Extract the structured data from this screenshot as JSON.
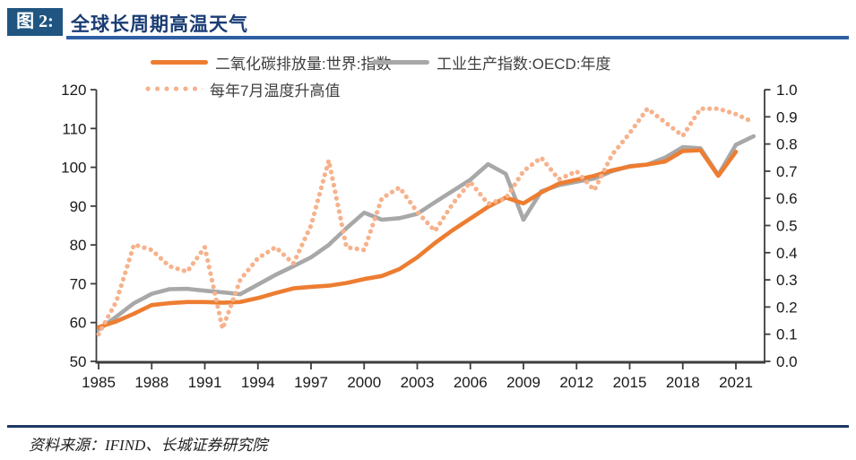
{
  "header": {
    "figure_label": "图 2:",
    "title": "全球长周期高温天气"
  },
  "legend": [
    {
      "label": "二氧化碳排放量:世界:指数",
      "style": "solid",
      "color": "#ED7D31"
    },
    {
      "label": "工业生产指数:OECD:年度",
      "style": "solid",
      "color": "#A8A8A8"
    },
    {
      "label": "每年7月温度升高值",
      "style": "dotted",
      "color": "#F6B28C"
    }
  ],
  "footer": {
    "source": "资料来源：IFIND、长城证券研究院"
  },
  "chart_data": {
    "type": "line",
    "title": "全球长周期高温天气",
    "x": [
      1985,
      1986,
      1987,
      1988,
      1989,
      1990,
      1991,
      1992,
      1993,
      1994,
      1995,
      1996,
      1997,
      1998,
      1999,
      2000,
      2001,
      2002,
      2003,
      2004,
      2005,
      2006,
      2007,
      2008,
      2009,
      2010,
      2011,
      2012,
      2013,
      2014,
      2015,
      2016,
      2017,
      2018,
      2019,
      2020,
      2021,
      2022
    ],
    "x_ticks": [
      1985,
      1988,
      1991,
      1994,
      1997,
      2000,
      2003,
      2006,
      2009,
      2012,
      2015,
      2018,
      2021
    ],
    "left_axis": {
      "min": 50,
      "max": 120,
      "ticks": [
        50,
        60,
        70,
        80,
        90,
        100,
        110,
        120
      ]
    },
    "right_axis": {
      "min": 0.0,
      "max": 1.0,
      "ticks": [
        "0.0",
        "0.1",
        "0.2",
        "0.3",
        "0.4",
        "0.5",
        "0.6",
        "0.7",
        "0.8",
        "0.9",
        "1.0"
      ]
    },
    "grid": false,
    "legend_position": "top",
    "series": [
      {
        "name": "工业生产指数:OECD:年度",
        "axis": "left",
        "style": "solid",
        "color": "#A8A8A8",
        "values": [
          58.2,
          61.5,
          65.0,
          67.4,
          68.6,
          68.7,
          68.2,
          67.8,
          67.3,
          69.8,
          72.3,
          74.5,
          76.8,
          80.0,
          84.3,
          88.3,
          86.5,
          86.9,
          88.0,
          91.0,
          93.9,
          96.8,
          100.8,
          98.3,
          86.5,
          93.8,
          95.4,
          96.3,
          97.1,
          99.0,
          100.3,
          100.7,
          102.5,
          105.2,
          104.9,
          98.0,
          105.8,
          108.0
        ]
      },
      {
        "name": "二氧化碳排放量:世界:指数",
        "axis": "left",
        "style": "solid",
        "color": "#ED7D31",
        "values": [
          58.8,
          60.3,
          62.3,
          64.5,
          65.0,
          65.3,
          65.3,
          65.1,
          65.3,
          66.3,
          67.6,
          68.8,
          69.2,
          69.5,
          70.2,
          71.2,
          72.0,
          73.8,
          76.8,
          80.5,
          83.8,
          86.8,
          89.8,
          92.2,
          90.7,
          93.5,
          95.8,
          96.8,
          97.8,
          99.2,
          100.2,
          100.7,
          101.5,
          104.2,
          104.4,
          97.8,
          104.0,
          null
        ]
      },
      {
        "name": "每年7月温度升高值",
        "axis": "right",
        "style": "dotted",
        "color": "#F6B28C",
        "values": [
          0.1,
          0.22,
          0.43,
          0.41,
          0.35,
          0.33,
          0.42,
          0.12,
          0.3,
          0.38,
          0.42,
          0.36,
          0.5,
          0.74,
          0.42,
          0.41,
          0.6,
          0.64,
          0.55,
          0.48,
          0.58,
          0.66,
          0.58,
          0.6,
          0.7,
          0.75,
          0.67,
          0.7,
          0.63,
          0.76,
          0.84,
          0.93,
          0.88,
          0.83,
          0.93,
          0.93,
          0.91,
          0.88
        ]
      }
    ]
  }
}
